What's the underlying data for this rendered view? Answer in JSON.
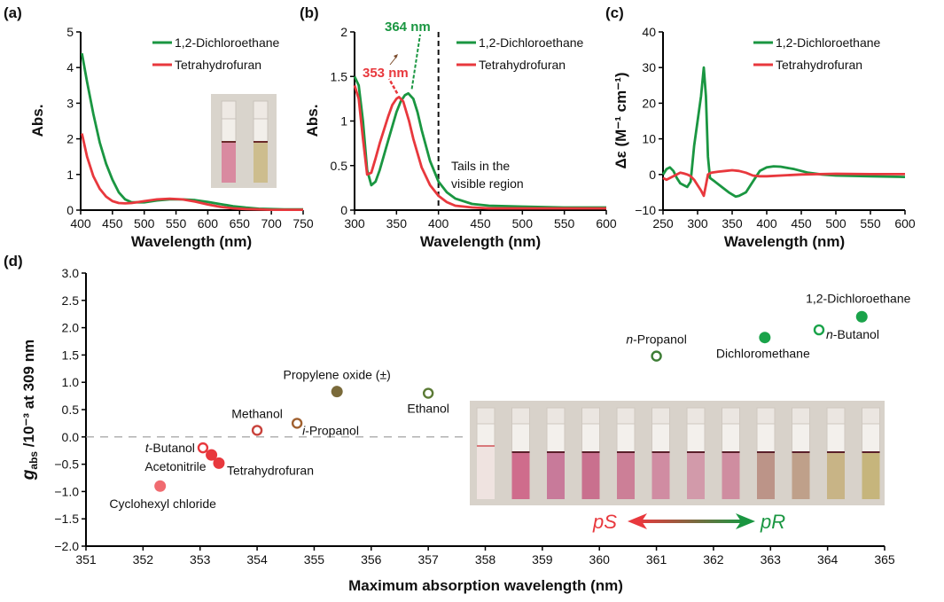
{
  "chart_data": [
    {
      "id": "a",
      "type": "line",
      "panel_label": "(a)",
      "title": "",
      "xlabel": "Wavelength (nm)",
      "ylabel": "Abs.",
      "xlim": [
        400,
        750
      ],
      "ylim": [
        0,
        5
      ],
      "xticks": [
        400,
        450,
        500,
        550,
        600,
        650,
        700,
        750
      ],
      "yticks": [
        0,
        1,
        2,
        3,
        4,
        5
      ],
      "legend_position": "top-right",
      "inset": "photo of two cuvettes (pink and yellow solutions)",
      "series": [
        {
          "name": "1,2-Dichloroethane",
          "color": "#1a9641",
          "x": [
            402,
            410,
            420,
            430,
            440,
            450,
            460,
            470,
            480,
            500,
            520,
            540,
            560,
            580,
            600,
            620,
            640,
            660,
            680,
            700,
            720,
            750
          ],
          "y": [
            4.4,
            3.6,
            2.7,
            1.9,
            1.3,
            0.85,
            0.5,
            0.3,
            0.22,
            0.22,
            0.27,
            0.3,
            0.3,
            0.28,
            0.23,
            0.17,
            0.11,
            0.07,
            0.04,
            0.03,
            0.02,
            0.02
          ]
        },
        {
          "name": "Tetrahydrofuran",
          "color": "#e8383d",
          "x": [
            402,
            410,
            420,
            430,
            440,
            450,
            460,
            470,
            480,
            500,
            520,
            540,
            560,
            580,
            600,
            620,
            640,
            660,
            680,
            700,
            720,
            750
          ],
          "y": [
            2.15,
            1.5,
            0.95,
            0.6,
            0.38,
            0.25,
            0.2,
            0.19,
            0.2,
            0.25,
            0.3,
            0.32,
            0.3,
            0.24,
            0.16,
            0.09,
            0.05,
            0.03,
            0.02,
            0.01,
            0.01,
            0.01
          ]
        }
      ]
    },
    {
      "id": "b",
      "type": "line",
      "panel_label": "(b)",
      "title": "",
      "xlabel": "Wavelength (nm)",
      "ylabel": "Abs.",
      "xlim": [
        300,
        600
      ],
      "ylim": [
        0,
        2
      ],
      "xticks": [
        300,
        350,
        400,
        450,
        500,
        550,
        600
      ],
      "yticks": [
        0,
        0.5,
        1,
        1.5,
        2
      ],
      "ytick_labels": [
        "0",
        "0.5",
        "1",
        "1.5",
        "2"
      ],
      "legend_position": "top-right",
      "vline_x": 400,
      "annotations": [
        {
          "text": "364 nm",
          "color": "#1a9641"
        },
        {
          "text": "353 nm",
          "color": "#e8383d"
        },
        {
          "text_lines": [
            "Tails in the",
            "visible region"
          ],
          "color": "#111111"
        }
      ],
      "series": [
        {
          "name": "1,2-Dichloroethane",
          "color": "#1a9641",
          "peak": 364,
          "x": [
            300,
            305,
            310,
            315,
            320,
            325,
            330,
            340,
            350,
            355,
            360,
            364,
            370,
            375,
            380,
            390,
            400,
            410,
            420,
            440,
            460,
            500,
            550,
            600
          ],
          "y": [
            1.5,
            1.4,
            1.0,
            0.45,
            0.28,
            0.32,
            0.45,
            0.78,
            1.1,
            1.22,
            1.29,
            1.31,
            1.25,
            1.1,
            0.9,
            0.55,
            0.32,
            0.2,
            0.13,
            0.07,
            0.05,
            0.04,
            0.03,
            0.03
          ]
        },
        {
          "name": "Tetrahydrofuran",
          "color": "#e8383d",
          "peak": 353,
          "x": [
            300,
            305,
            310,
            315,
            320,
            325,
            330,
            340,
            345,
            350,
            353,
            358,
            365,
            370,
            380,
            390,
            400,
            410,
            420,
            440,
            460,
            500,
            550,
            600
          ],
          "y": [
            1.4,
            1.25,
            0.8,
            0.4,
            0.42,
            0.58,
            0.75,
            1.05,
            1.18,
            1.25,
            1.27,
            1.22,
            1.0,
            0.8,
            0.48,
            0.28,
            0.16,
            0.09,
            0.05,
            0.03,
            0.02,
            0.02,
            0.02,
            0.02
          ]
        }
      ]
    },
    {
      "id": "c",
      "type": "line",
      "panel_label": "(c)",
      "title": "",
      "xlabel": "Wavelength (nm)",
      "ylabel": "Δε (M⁻¹ cm⁻¹)",
      "xlim": [
        250,
        600
      ],
      "ylim": [
        -10,
        40
      ],
      "xticks": [
        250,
        300,
        350,
        400,
        450,
        500,
        550,
        600
      ],
      "yticks": [
        -10,
        0,
        10,
        20,
        30,
        40
      ],
      "ytick_labels": [
        "−10",
        "0",
        "10",
        "20",
        "30",
        "40"
      ],
      "legend_position": "top-right",
      "series": [
        {
          "name": "1,2-Dichloroethane",
          "color": "#1a9641",
          "x": [
            250,
            255,
            260,
            265,
            270,
            275,
            280,
            285,
            290,
            295,
            300,
            305,
            309,
            312,
            315,
            318,
            325,
            335,
            345,
            355,
            360,
            370,
            380,
            390,
            400,
            410,
            420,
            440,
            460,
            480,
            500,
            550,
            600
          ],
          "y": [
            0,
            1.5,
            2,
            1,
            -1,
            -2.5,
            -3,
            -3.5,
            -2,
            8,
            15,
            22,
            30,
            22,
            5,
            -1,
            -2,
            -3.5,
            -5,
            -6.2,
            -6,
            -5,
            -2,
            1,
            2,
            2.3,
            2.2,
            1.5,
            0.5,
            0,
            -0.3,
            -0.5,
            -0.7
          ]
        },
        {
          "name": "Tetrahydrofuran",
          "color": "#e8383d",
          "x": [
            250,
            255,
            260,
            265,
            270,
            275,
            280,
            285,
            290,
            295,
            300,
            305,
            309,
            312,
            315,
            320,
            330,
            340,
            350,
            360,
            370,
            380,
            390,
            400,
            450,
            500,
            550,
            600
          ],
          "y": [
            -1,
            -1.5,
            -1,
            -0.5,
            0,
            0.5,
            0.3,
            0,
            -0.5,
            -1.5,
            -3,
            -4.5,
            -6,
            -3,
            0,
            0.5,
            0.8,
            1,
            1.2,
            1,
            0.5,
            -0.3,
            -0.5,
            -0.5,
            0,
            0.2,
            0.1,
            0.1
          ]
        }
      ]
    },
    {
      "id": "d",
      "type": "scatter",
      "panel_label": "(d)",
      "title": "",
      "xlabel": "Maximum absorption wavelength (nm)",
      "ylabel_main": "g",
      "ylabel_sub": "abs",
      "ylabel_rest": " /10⁻³ at 309 nm",
      "xlim": [
        351,
        365
      ],
      "ylim": [
        -2.0,
        3.0
      ],
      "xticks": [
        351,
        352,
        353,
        354,
        355,
        356,
        357,
        358,
        359,
        360,
        361,
        362,
        363,
        364,
        365
      ],
      "yticks": [
        -2.0,
        -1.5,
        -1.0,
        -0.5,
        0.0,
        0.5,
        1.0,
        1.5,
        2.0,
        2.5,
        3.0
      ],
      "ytick_labels": [
        "−2.0",
        "−1.5",
        "−1.0",
        "−0.5",
        "0.0",
        "0.5",
        "1.0",
        "1.5",
        "2.0",
        "2.5",
        "3.0"
      ],
      "hline_y": 0.0,
      "inset": "photo of 12 cuvettes graded from colorless/pink to yellow",
      "arrow": {
        "left_label": "pS",
        "right_label": "pR",
        "left_color": "#e8383d",
        "right_color": "#1a9641"
      },
      "points": [
        {
          "label": "Cyclohexyl chloride",
          "prefix": "",
          "x": 352.3,
          "y": -0.9,
          "filled": true,
          "color": "#f06b70",
          "label_pos": "below"
        },
        {
          "label": "-Butanol",
          "prefix": "t",
          "x": 353.05,
          "y": -0.2,
          "filled": false,
          "color": "#e8383d",
          "label_pos": "left"
        },
        {
          "label": "Acetonitrile",
          "prefix": "",
          "x": 353.2,
          "y": -0.33,
          "filled": true,
          "color": "#e8383d",
          "label_pos": "left-below"
        },
        {
          "label": "Tetrahydrofuran",
          "prefix": "",
          "x": 353.33,
          "y": -0.48,
          "filled": true,
          "color": "#e8383d",
          "label_pos": "right"
        },
        {
          "label": "Methanol",
          "prefix": "",
          "x": 354.0,
          "y": 0.12,
          "filled": false,
          "color": "#c8423b",
          "label_pos": "above"
        },
        {
          "label": "-Propanol",
          "prefix": "i",
          "x": 354.7,
          "y": 0.25,
          "filled": false,
          "color": "#a0602f",
          "label_pos": "right"
        },
        {
          "label": "Propylene oxide (±)",
          "prefix": "",
          "x": 355.4,
          "y": 0.83,
          "filled": true,
          "color": "#7a6a3a",
          "label_pos": "above"
        },
        {
          "label": "Ethanol",
          "prefix": "",
          "x": 357.0,
          "y": 0.8,
          "filled": false,
          "color": "#5b7a35",
          "label_pos": "below"
        },
        {
          "label": "-Propanol",
          "prefix": "n",
          "x": 361.0,
          "y": 1.48,
          "filled": false,
          "color": "#3d7d35",
          "label_pos": "above"
        },
        {
          "label": "Dichloromethane",
          "prefix": "",
          "x": 362.9,
          "y": 1.82,
          "filled": true,
          "color": "#1aa34a",
          "label_pos": "below"
        },
        {
          "label": "-Butanol",
          "prefix": "n",
          "x": 363.85,
          "y": 1.96,
          "filled": false,
          "color": "#1aa34a",
          "label_pos": "right"
        },
        {
          "label": "1,2-Dichloroethane",
          "prefix": "",
          "x": 364.6,
          "y": 2.2,
          "filled": true,
          "color": "#1aa34a",
          "label_pos": "above"
        }
      ]
    }
  ]
}
